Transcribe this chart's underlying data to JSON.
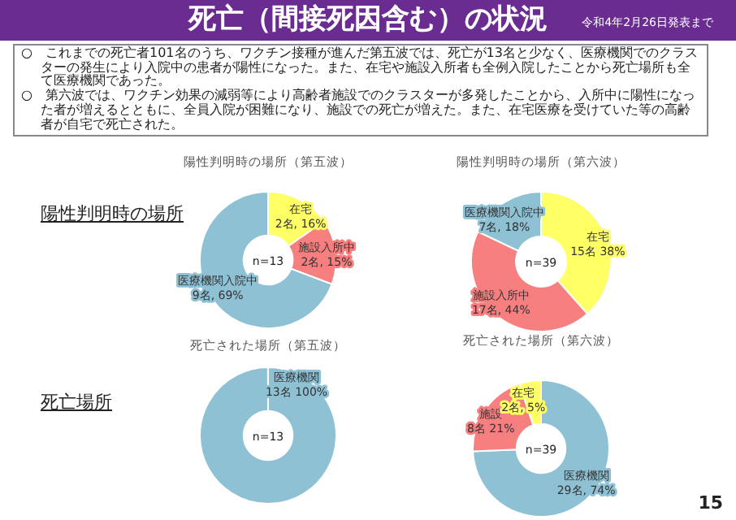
{
  "chart_data": [
    {
      "type": "other",
      "title": "死亡（間接死因含む）の状況",
      "subtitle": "令和4年2月26日発表まで",
      "annotations": [
        "○　これまでの死亡者101名のうち、ワクチン接種が進んだ第五波では、死亡が13名と少なく、医療機関でのクラスターの発生により入院中の患者が陽性になった。また、在宅や施設入所者も全例入院したことから死亡場所も全て医療機関であった。",
        "○　第六波では、ワクチン効果の減弱等により高齢者施設でのクラスターが多発したことから、入所中に陽性になった者が増えるとともに、全員入院が困難になり、施設での死亡が増えた。また、在宅医療を受けていた等の高齢者が自宅で死亡された。",
        "陽性判明時の場所",
        "死亡場所",
        "15"
      ]
    },
    {
      "type": "donut",
      "title": "陽性判明時の場所（第五波）",
      "categories": [
        "在宅",
        "施設入所中",
        "医療機関入院中"
      ],
      "values": [
        2,
        2,
        9
      ],
      "colors": [
        "#ffff66",
        "#f77f7f",
        "#8fc1d4"
      ],
      "value_labels": [
        "2名, 16%",
        "2名, 15%",
        "9名, 69%"
      ],
      "annotations": [
        "n=13"
      ]
    },
    {
      "type": "donut",
      "title": "陽性判明時の場所（第六波）",
      "categories": [
        "在宅",
        "施設入所中",
        "医療機関入院中"
      ],
      "values": [
        15,
        17,
        7
      ],
      "colors": [
        "#ffff66",
        "#f77f7f",
        "#8fc1d4"
      ],
      "value_labels": [
        "15名 38%",
        "17名, 44%",
        "7名, 18%"
      ],
      "annotations": [
        "n=39"
      ]
    },
    {
      "type": "donut",
      "title": "死亡された場所（第五波）",
      "categories": [
        "医療機関"
      ],
      "values": [
        13
      ],
      "colors": [
        "#8fc1d4"
      ],
      "value_labels": [
        "13名 100%"
      ],
      "annotations": [
        "n=13"
      ]
    },
    {
      "type": "donut",
      "title": "死亡された場所（第六波）",
      "categories": [
        "医療機関",
        "施設",
        "在宅"
      ],
      "values": [
        29,
        8,
        2
      ],
      "colors": [
        "#8fc1d4",
        "#f77f7f",
        "#ffff66"
      ],
      "value_labels": [
        "29名, 74%",
        "8名 21%",
        "2名, 5%"
      ],
      "annotations": [
        "n=39"
      ]
    }
  ]
}
